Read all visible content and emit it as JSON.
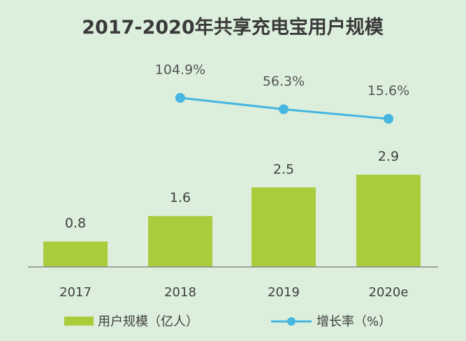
{
  "chart_data": {
    "type": "bar",
    "title": "2017-2020年共享充电宝用户规模",
    "categories": [
      "2017",
      "2018",
      "2019",
      "2020e"
    ],
    "series": [
      {
        "name": "用户规模（亿人）",
        "type": "bar",
        "color": "#a8cc3c",
        "values": [
          0.8,
          1.6,
          2.5,
          2.9
        ],
        "labels": [
          "0.8",
          "1.6",
          "2.5",
          "2.9"
        ]
      },
      {
        "name": "增长率（%）",
        "type": "line",
        "color": "#45b6e0",
        "values": [
          null,
          104.9,
          56.3,
          15.6
        ],
        "labels": [
          "",
          "104.9%",
          "56.3%",
          "15.6%"
        ]
      }
    ],
    "legend_position": "bottom",
    "grid": false
  }
}
